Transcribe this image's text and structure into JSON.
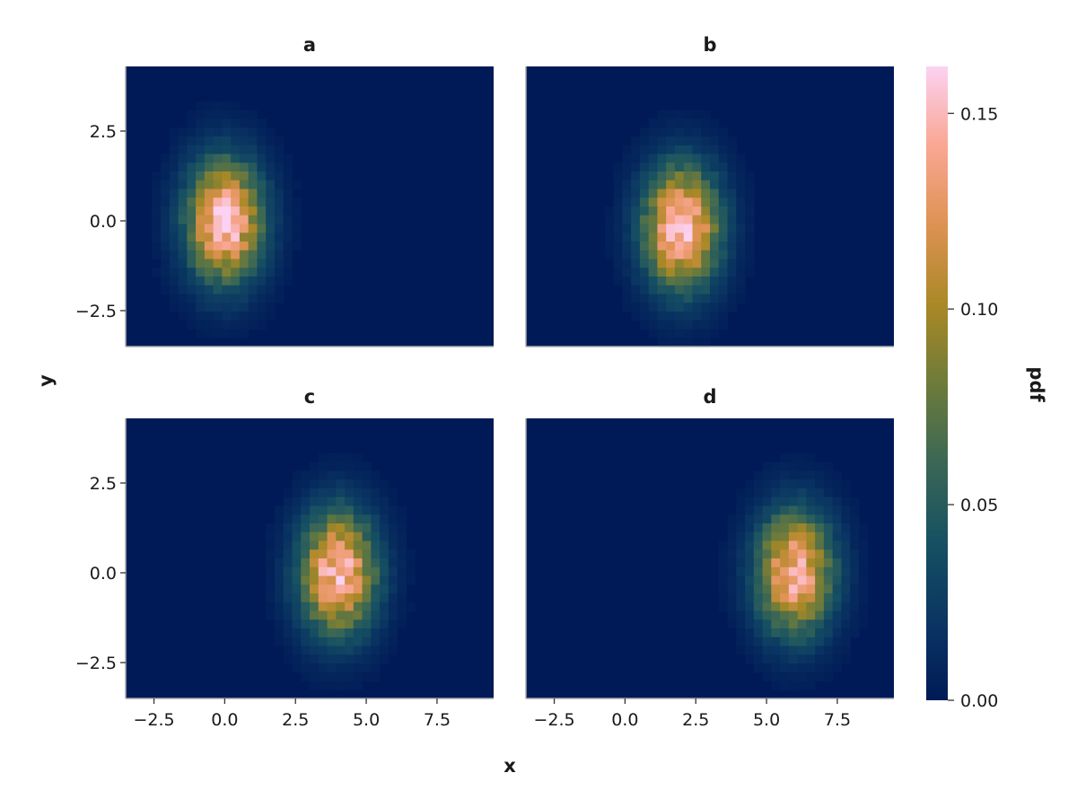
{
  "chart_data": {
    "type": "heatmap",
    "colormap": "batlow",
    "colors": {
      "low": "#001a57",
      "mid": "#1f5f60",
      "high": "#fbd2f2",
      "spine": "#a8aab0"
    },
    "xlabel": "x",
    "ylabel": "y",
    "colorbar": {
      "label": "pdf",
      "range": [
        0,
        0.162
      ],
      "ticks": [
        0.0,
        0.05,
        0.1,
        0.15
      ],
      "tick_labels": [
        "0.00",
        "0.05",
        "0.10",
        "0.15"
      ]
    },
    "xlim": [
      -3.5,
      9.5
    ],
    "ylim": [
      -3.5,
      4.3
    ],
    "x_ticks": [
      -2.5,
      0.0,
      2.5,
      5.0,
      7.5
    ],
    "x_tick_labels": [
      "−2.5",
      "0.0",
      "2.5",
      "5.0",
      "7.5"
    ],
    "y_ticks": [
      -2.5,
      0.0,
      2.5
    ],
    "y_tick_labels": [
      "−2.5",
      "0.0",
      "2.5"
    ],
    "grid": false,
    "panels": [
      {
        "title": "a",
        "center": [
          0.0,
          0.0
        ],
        "peak": 0.155
      },
      {
        "title": "b",
        "center": [
          2.0,
          -0.2
        ],
        "peak": 0.158
      },
      {
        "title": "c",
        "center": [
          4.0,
          0.0
        ],
        "peak": 0.15
      },
      {
        "title": "d",
        "center": [
          6.0,
          0.0
        ],
        "peak": 0.146
      }
    ]
  }
}
